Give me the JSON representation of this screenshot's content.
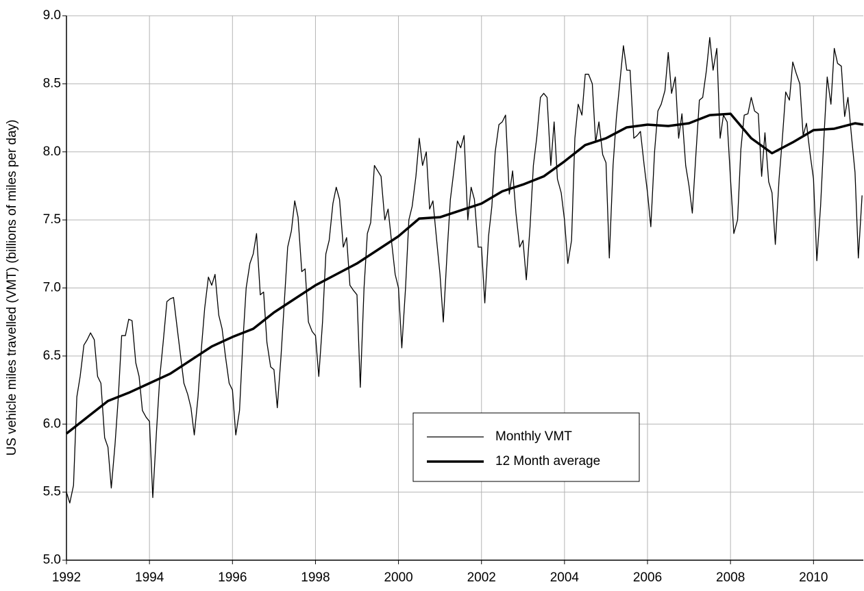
{
  "chart_data": {
    "type": "line",
    "ylabel": "US vehicle miles travelled (VMT) (billions of miles per day)",
    "xlim": [
      1992,
      2011.2
    ],
    "ylim": [
      5,
      9
    ],
    "xticks": [
      1992,
      1994,
      1996,
      1998,
      2000,
      2002,
      2004,
      2006,
      2008,
      2010
    ],
    "yticks": [
      {
        "value": 5,
        "label": "5.0"
      },
      5.5,
      {
        "value": 6,
        "label": "6.0"
      },
      6.5,
      {
        "value": 7,
        "label": "7.0"
      },
      7.5,
      {
        "value": 8,
        "label": "8.0"
      },
      8.5,
      {
        "value": 9,
        "label": "9.0"
      }
    ],
    "grid": true,
    "legend": "center-right",
    "series": [
      {
        "name": "Monthly VMT",
        "color": "#000000",
        "line_width": 1.3,
        "x": [
          1992,
          1992.08,
          1992.17,
          1992.25,
          1992.33,
          1992.42,
          1992.5,
          1992.58,
          1992.67,
          1992.75,
          1992.83,
          1992.92,
          1993,
          1993.08,
          1993.17,
          1993.25,
          1993.33,
          1993.42,
          1993.5,
          1993.58,
          1993.67,
          1993.75,
          1993.83,
          1993.92,
          1994,
          1994.08,
          1994.17,
          1994.25,
          1994.33,
          1994.42,
          1994.5,
          1994.58,
          1994.67,
          1994.75,
          1994.83,
          1994.92,
          1995,
          1995.08,
          1995.17,
          1995.25,
          1995.33,
          1995.42,
          1995.5,
          1995.58,
          1995.67,
          1995.75,
          1995.83,
          1995.92,
          1996,
          1996.08,
          1996.17,
          1996.25,
          1996.33,
          1996.42,
          1996.5,
          1996.58,
          1996.67,
          1996.75,
          1996.83,
          1996.92,
          1997,
          1997.08,
          1997.17,
          1997.25,
          1997.33,
          1997.42,
          1997.5,
          1997.58,
          1997.67,
          1997.75,
          1997.83,
          1997.92,
          1998,
          1998.08,
          1998.17,
          1998.25,
          1998.33,
          1998.42,
          1998.5,
          1998.58,
          1998.67,
          1998.75,
          1998.83,
          1998.92,
          1999,
          1999.08,
          1999.17,
          1999.25,
          1999.33,
          1999.42,
          1999.5,
          1999.58,
          1999.67,
          1999.75,
          1999.83,
          1999.92,
          2000,
          2000.08,
          2000.17,
          2000.25,
          2000.33,
          2000.42,
          2000.5,
          2000.58,
          2000.67,
          2000.75,
          2000.83,
          2000.92,
          2001,
          2001.08,
          2001.17,
          2001.25,
          2001.33,
          2001.42,
          2001.5,
          2001.58,
          2001.67,
          2001.75,
          2001.83,
          2001.92,
          2002,
          2002.08,
          2002.17,
          2002.25,
          2002.33,
          2002.42,
          2002.5,
          2002.58,
          2002.67,
          2002.75,
          2002.83,
          2002.92,
          2003,
          2003.08,
          2003.17,
          2003.25,
          2003.33,
          2003.42,
          2003.5,
          2003.58,
          2003.67,
          2003.75,
          2003.83,
          2003.92,
          2004,
          2004.08,
          2004.17,
          2004.25,
          2004.33,
          2004.42,
          2004.5,
          2004.58,
          2004.67,
          2004.75,
          2004.83,
          2004.92,
          2005,
          2005.08,
          2005.17,
          2005.25,
          2005.33,
          2005.42,
          2005.5,
          2005.58,
          2005.67,
          2005.75,
          2005.83,
          2005.92,
          2006,
          2006.08,
          2006.17,
          2006.25,
          2006.33,
          2006.42,
          2006.5,
          2006.58,
          2006.67,
          2006.75,
          2006.83,
          2006.92,
          2007,
          2007.08,
          2007.17,
          2007.25,
          2007.33,
          2007.42,
          2007.5,
          2007.58,
          2007.67,
          2007.75,
          2007.83,
          2007.92,
          2008,
          2008.08,
          2008.17,
          2008.25,
          2008.33,
          2008.42,
          2008.5,
          2008.58,
          2008.67,
          2008.75,
          2008.83,
          2008.92,
          2009,
          2009.08,
          2009.17,
          2009.25,
          2009.33,
          2009.42,
          2009.5,
          2009.58,
          2009.67,
          2009.75,
          2009.83,
          2009.92,
          2010,
          2010.08,
          2010.17,
          2010.25,
          2010.33,
          2010.42,
          2010.5,
          2010.58,
          2010.67,
          2010.75,
          2010.83,
          2010.92,
          2011,
          2011.08,
          2011.17
        ],
        "values": [
          5.5,
          5.42,
          5.55,
          6.2,
          6.35,
          6.58,
          6.62,
          6.67,
          6.62,
          6.35,
          6.3,
          5.9,
          5.83,
          5.53,
          5.85,
          6.2,
          6.65,
          6.65,
          6.77,
          6.76,
          6.45,
          6.35,
          6.1,
          6.05,
          6.02,
          5.46,
          5.95,
          6.35,
          6.6,
          6.9,
          6.92,
          6.93,
          6.7,
          6.5,
          6.3,
          6.22,
          6.12,
          5.92,
          6.2,
          6.55,
          6.85,
          7.08,
          7.02,
          7.1,
          6.8,
          6.7,
          6.5,
          6.3,
          6.25,
          5.92,
          6.1,
          6.6,
          7.0,
          7.18,
          7.25,
          7.4,
          6.95,
          6.97,
          6.6,
          6.42,
          6.4,
          6.12,
          6.5,
          6.9,
          7.3,
          7.42,
          7.64,
          7.52,
          7.12,
          7.14,
          6.75,
          6.68,
          6.65,
          6.35,
          6.75,
          7.25,
          7.35,
          7.62,
          7.74,
          7.65,
          7.3,
          7.37,
          7.02,
          6.98,
          6.95,
          6.27,
          7.0,
          7.4,
          7.48,
          7.9,
          7.86,
          7.82,
          7.5,
          7.58,
          7.35,
          7.1,
          7.0,
          6.56,
          7.0,
          7.5,
          7.6,
          7.82,
          8.1,
          7.9,
          8.0,
          7.58,
          7.64,
          7.35,
          7.1,
          6.75,
          7.25,
          7.65,
          7.85,
          8.08,
          8.03,
          8.12,
          7.5,
          7.74,
          7.65,
          7.3,
          7.3,
          6.89,
          7.38,
          7.6,
          8.0,
          8.2,
          8.22,
          8.27,
          7.69,
          7.86,
          7.55,
          7.3,
          7.35,
          7.06,
          7.45,
          7.9,
          8.1,
          8.4,
          8.43,
          8.4,
          7.9,
          8.22,
          7.8,
          7.7,
          7.5,
          7.18,
          7.35,
          8.1,
          8.35,
          8.27,
          8.57,
          8.57,
          8.5,
          8.07,
          8.22,
          7.98,
          7.92,
          7.22,
          7.9,
          8.25,
          8.5,
          8.78,
          8.6,
          8.6,
          8.1,
          8.12,
          8.15,
          7.9,
          7.7,
          7.45,
          8.0,
          8.3,
          8.35,
          8.45,
          8.73,
          8.43,
          8.55,
          8.1,
          8.28,
          7.9,
          7.75,
          7.55,
          8.0,
          8.38,
          8.4,
          8.6,
          8.84,
          8.6,
          8.76,
          8.1,
          8.27,
          8.22,
          7.8,
          7.4,
          7.5,
          8.02,
          8.27,
          8.28,
          8.4,
          8.3,
          8.28,
          7.82,
          8.14,
          7.78,
          7.7,
          7.32,
          7.8,
          8.1,
          8.44,
          8.38,
          8.66,
          8.58,
          8.5,
          8.12,
          8.21,
          7.98,
          7.8,
          7.2,
          7.6,
          8.1,
          8.55,
          8.35,
          8.76,
          8.65,
          8.63,
          8.26,
          8.4,
          8.1,
          7.85,
          7.22,
          7.68
        ]
      },
      {
        "name": "12 Month average",
        "color": "#000000",
        "line_width": 3.5,
        "x": [
          1992,
          1992.5,
          1993,
          1993.5,
          1994,
          1994.5,
          1995,
          1995.5,
          1996,
          1996.5,
          1997,
          1997.5,
          1998,
          1998.5,
          1999,
          1999.5,
          2000,
          2000.5,
          2001,
          2001.5,
          2002,
          2002.5,
          2003,
          2003.5,
          2004,
          2004.5,
          2005,
          2005.5,
          2006,
          2006.5,
          2007,
          2007.5,
          2008,
          2008.5,
          2009,
          2009.5,
          2010,
          2010.5,
          2011,
          2011.2
        ],
        "values": [
          5.93,
          6.05,
          6.17,
          6.23,
          6.3,
          6.37,
          6.47,
          6.57,
          6.64,
          6.7,
          6.82,
          6.92,
          7.02,
          7.1,
          7.18,
          7.28,
          7.38,
          7.51,
          7.52,
          7.57,
          7.62,
          7.71,
          7.76,
          7.82,
          7.93,
          8.05,
          8.1,
          8.18,
          8.2,
          8.19,
          8.21,
          8.27,
          8.28,
          8.1,
          7.99,
          8.07,
          8.16,
          8.17,
          8.21,
          8.2
        ]
      }
    ]
  }
}
